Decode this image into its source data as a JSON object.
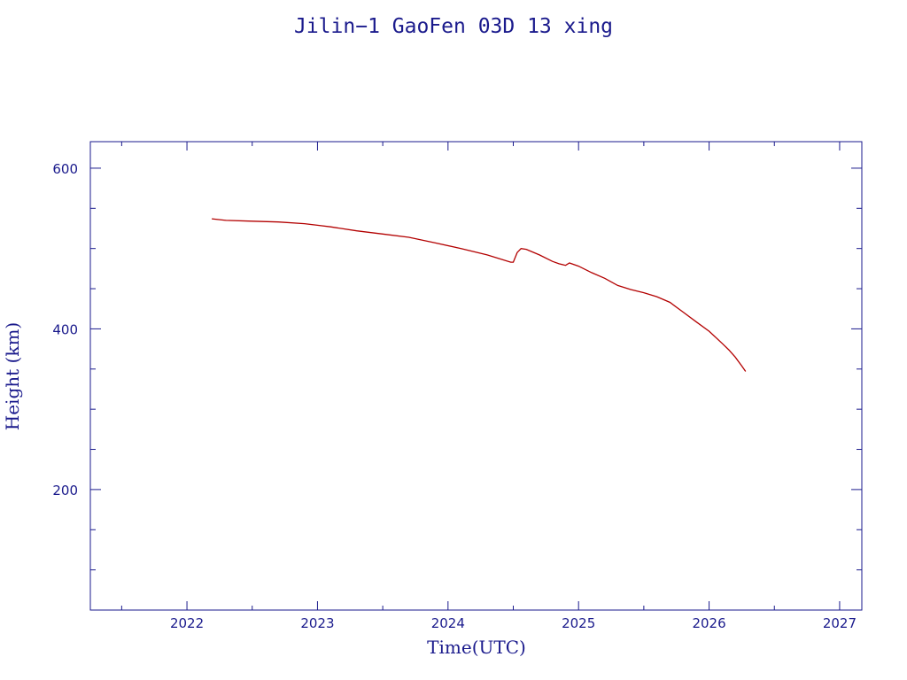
{
  "chart_data": {
    "type": "line",
    "title": "Jilin−1 GaoFen 03D 13 xing",
    "xlabel": "Time(UTC)",
    "ylabel": "Height (km)",
    "xlim": [
      2021.26,
      2027.17
    ],
    "ylim": [
      50,
      633
    ],
    "x_ticks": [
      2022,
      2023,
      2024,
      2025,
      2026,
      2027
    ],
    "x_tick_labels": [
      "2022",
      "2023",
      "2024",
      "2025",
      "2026",
      "2027"
    ],
    "y_ticks": [
      200,
      400,
      600
    ],
    "y_tick_labels": [
      "200",
      "400",
      "600"
    ],
    "grid": false,
    "legend": "none",
    "colors": {
      "axis": "#1a1a8c",
      "series": "#b30000",
      "background": "#ffffff"
    },
    "series": [
      {
        "x": [
          2022.19,
          2022.3,
          2022.5,
          2022.7,
          2022.9,
          2023.0,
          2023.1,
          2023.3,
          2023.5,
          2023.7,
          2023.9,
          2024.1,
          2024.3,
          2024.48,
          2024.5,
          2024.53,
          2024.56,
          2024.6,
          2024.7,
          2024.8,
          2024.85,
          2024.9,
          2024.93,
          2025.0,
          2025.1,
          2025.2,
          2025.3,
          2025.4,
          2025.5,
          2025.6,
          2025.7,
          2025.8,
          2025.9,
          2026.0,
          2026.1,
          2026.15,
          2026.2,
          2026.25,
          2026.28
        ],
        "y": [
          537,
          535,
          534,
          533,
          531,
          529,
          527,
          522,
          518,
          514,
          507,
          500,
          492,
          483,
          483,
          495,
          500,
          499,
          492,
          484,
          481,
          479,
          482,
          478,
          470,
          463,
          454,
          449,
          445,
          440,
          433,
          421,
          409,
          397,
          382,
          374,
          365,
          354,
          347
        ]
      }
    ]
  }
}
